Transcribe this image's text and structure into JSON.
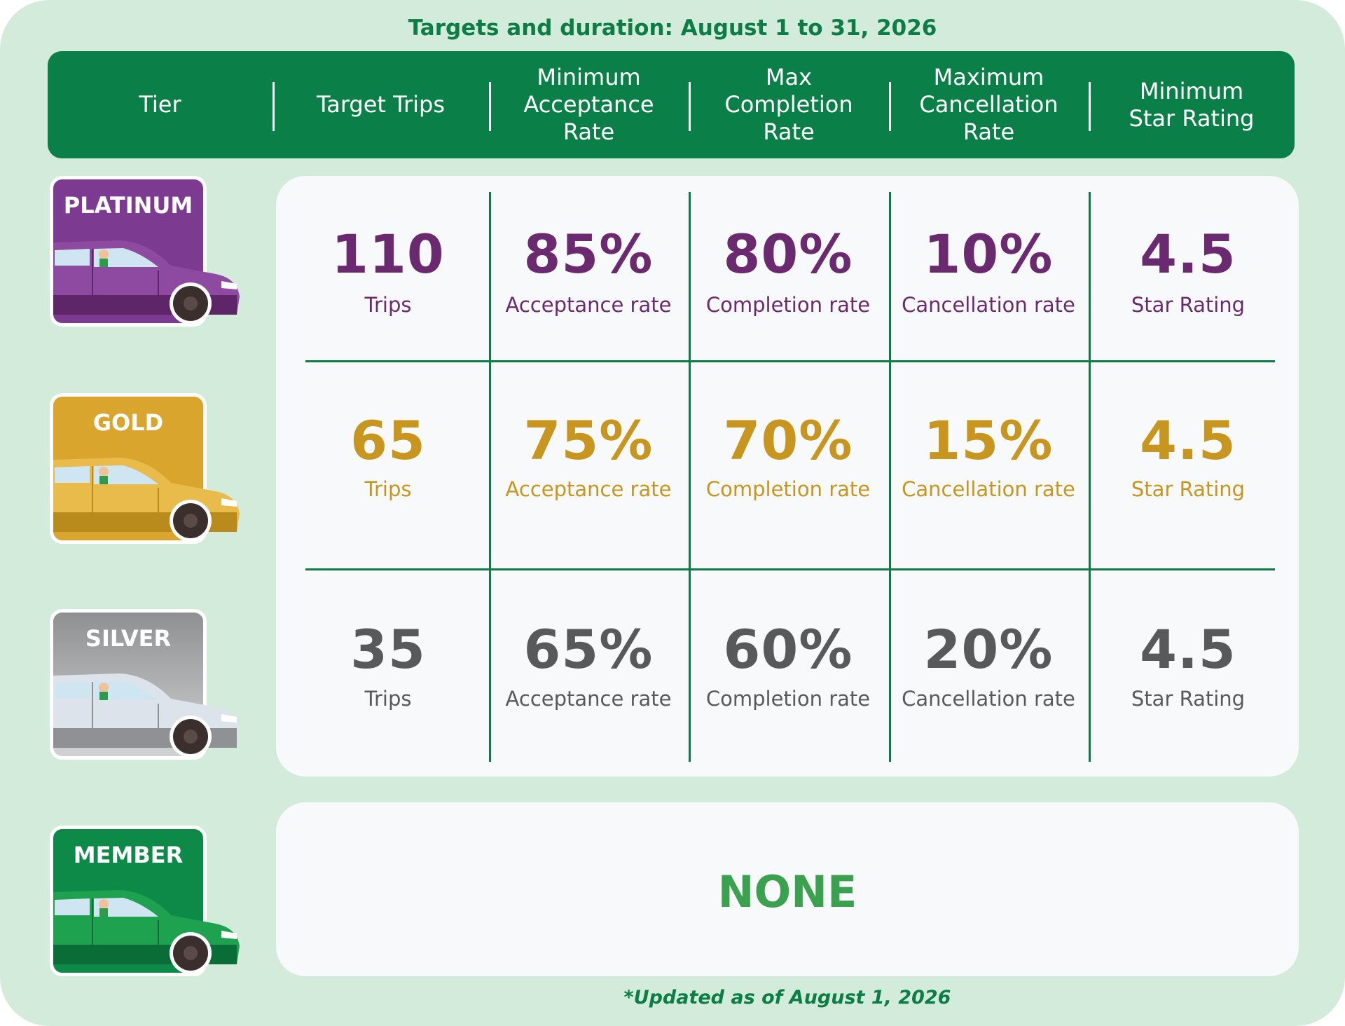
{
  "title": "Targets and duration: August 1 to 31, 2026",
  "header": [
    [
      "Tier"
    ],
    [
      "Target Trips"
    ],
    [
      "Minimum",
      "Acceptance",
      "Rate"
    ],
    [
      "Max",
      "Completion",
      "Rate"
    ],
    [
      "Maximum",
      "Cancellation",
      "Rate"
    ],
    [
      "Minimum",
      "Star Rating"
    ]
  ],
  "rows": [
    {
      "tier": "PLATINUM",
      "cells": [
        [
          "110",
          "Trips"
        ],
        [
          "85%",
          "Acceptance rate"
        ],
        [
          "80%",
          "Completion rate"
        ],
        [
          "10%",
          "Cancellation rate"
        ],
        [
          "4.5",
          "Star Rating"
        ]
      ]
    },
    {
      "tier": "GOLD",
      "cells": [
        [
          "65",
          "Trips"
        ],
        [
          "75%",
          "Acceptance rate"
        ],
        [
          "70%",
          "Completion rate"
        ],
        [
          "15%",
          "Cancellation rate"
        ],
        [
          "4.5",
          "Star Rating"
        ]
      ]
    },
    {
      "tier": "SILVER",
      "cells": [
        [
          "35",
          "Trips"
        ],
        [
          "65%",
          "Acceptance rate"
        ],
        [
          "60%",
          "Completion rate"
        ],
        [
          "20%",
          "Cancellation rate"
        ],
        [
          "4.5",
          "Star Rating"
        ]
      ]
    },
    {
      "tier": "MEMBER",
      "none": "NONE"
    }
  ],
  "footnote": "*Updated as of August 1, 2026"
}
